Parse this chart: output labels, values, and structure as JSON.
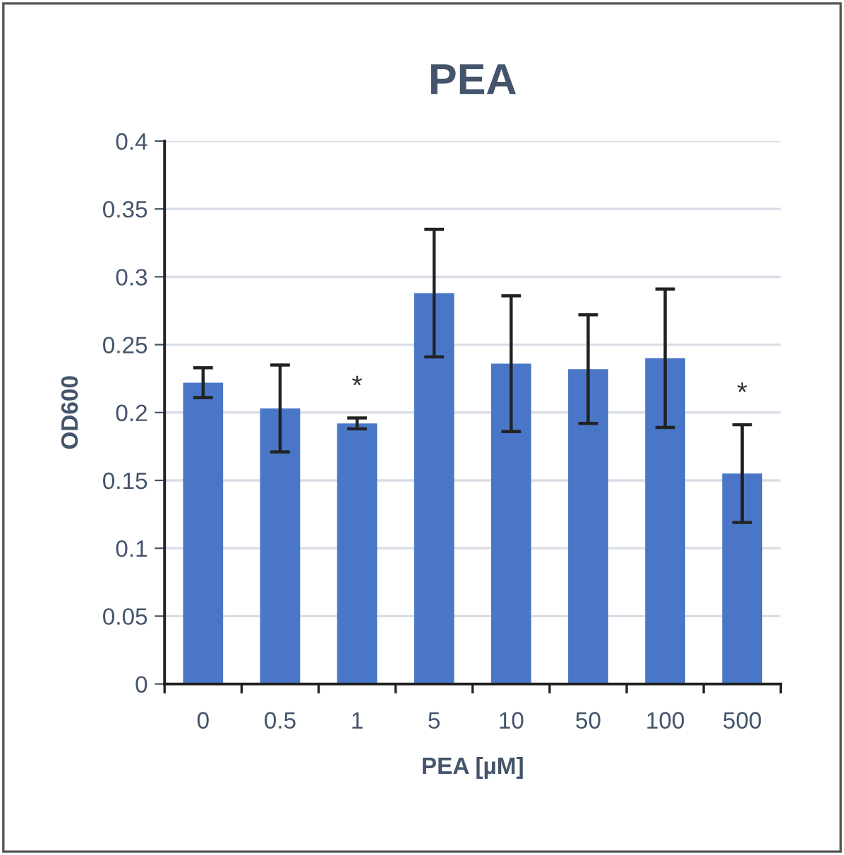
{
  "chart_data": {
    "type": "bar",
    "title": "PEA",
    "xlabel": "PEA [µM]",
    "ylabel": "OD600",
    "categories": [
      "0",
      "0.5",
      "1",
      "5",
      "10",
      "50",
      "100",
      "500"
    ],
    "values": [
      0.222,
      0.203,
      0.192,
      0.288,
      0.236,
      0.232,
      0.24,
      0.155
    ],
    "errors": [
      0.011,
      0.032,
      0.004,
      0.047,
      0.05,
      0.04,
      0.051,
      0.036
    ],
    "color": "#4a76c8",
    "ylim": [
      0,
      0.4
    ],
    "yticks": [
      {
        "value": 0,
        "label": "0"
      },
      0.05,
      0.1,
      0.15,
      0.2,
      0.25,
      0.3,
      0.35,
      0.4
    ],
    "grid": "y",
    "annotations": [
      {
        "text": "*",
        "x": "1",
        "y": 0.196
      },
      {
        "text": "*",
        "x": "500",
        "y": 0.191
      }
    ]
  }
}
